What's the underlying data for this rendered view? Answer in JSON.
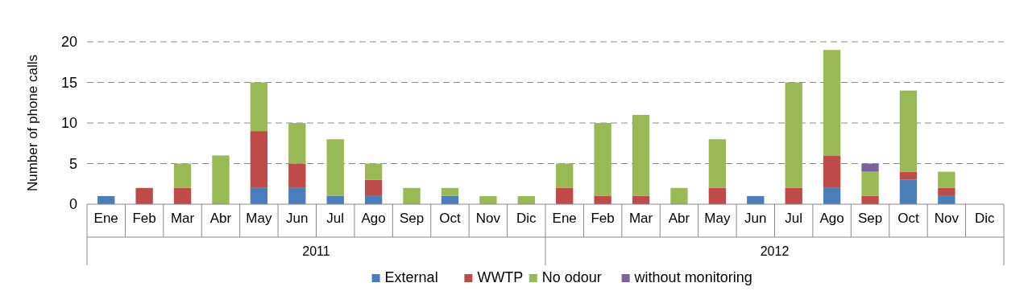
{
  "chart_data": {
    "type": "bar",
    "stacked": true,
    "ylabel": "Number of phone calls",
    "categories": [
      "Ene",
      "Feb",
      "Mar",
      "Abr",
      "May",
      "Jun",
      "Jul",
      "Ago",
      "Sep",
      "Oct",
      "Nov",
      "Dic",
      "Ene",
      "Feb",
      "Mar",
      "Abr",
      "May",
      "Jun",
      "Jul",
      "Ago",
      "Sep",
      "Oct",
      "Nov",
      "Dic"
    ],
    "annotations": [
      "2011",
      "2012"
    ],
    "series": [
      {
        "name": "External",
        "color": "#4a7ebb",
        "values": [
          1,
          0,
          0,
          0,
          2,
          2,
          1,
          1,
          0,
          1,
          0,
          0,
          0,
          0,
          0,
          0,
          0,
          1,
          0,
          2,
          0,
          3,
          1,
          0
        ]
      },
      {
        "name": "WWTP",
        "color": "#be4b48",
        "values": [
          0,
          2,
          2,
          0,
          7,
          3,
          0,
          2,
          0,
          0,
          0,
          0,
          2,
          1,
          1,
          0,
          2,
          0,
          2,
          4,
          1,
          1,
          1,
          0
        ]
      },
      {
        "name": "No odour",
        "color": "#98b954",
        "values": [
          0,
          0,
          3,
          6,
          6,
          5,
          7,
          2,
          2,
          1,
          1,
          1,
          3,
          9,
          10,
          2,
          6,
          0,
          13,
          13,
          3,
          10,
          2,
          0
        ]
      },
      {
        "name": "without monitoring",
        "color": "#7d60a0",
        "values": [
          0,
          0,
          0,
          0,
          0,
          0,
          0,
          0,
          0,
          0,
          0,
          0,
          0,
          0,
          0,
          0,
          0,
          0,
          0,
          0,
          1,
          0,
          0,
          0
        ]
      }
    ],
    "ylim": [
      0,
      20
    ],
    "yticks": [
      0,
      5,
      10,
      15,
      20
    ],
    "grid": "y",
    "legend": "bottom"
  }
}
